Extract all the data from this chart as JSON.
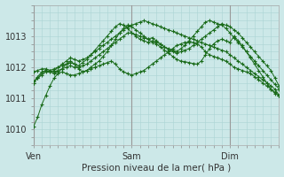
{
  "background_color": "#cce8e8",
  "grid_color": "#aad4d4",
  "line_color": "#1a6b1a",
  "text_color": "#333333",
  "xlabel": "Pression niveau de la mer( hPa )",
  "xlabel_fontsize": 7.5,
  "tick_fontsize": 7,
  "ylim": [
    1009.5,
    1014.0
  ],
  "yticks": [
    1010,
    1011,
    1012,
    1013
  ],
  "xtick_labels": [
    "Ven",
    "Sam",
    "Dim"
  ],
  "xtick_positions": [
    0,
    96,
    192
  ],
  "vline_positions": [
    0,
    96,
    192
  ],
  "xlim": [
    0,
    240
  ],
  "series": [
    {
      "x": [
        0,
        4,
        8,
        12,
        16,
        20,
        24,
        28,
        32,
        36,
        40,
        44,
        48,
        52,
        56,
        60,
        64,
        68,
        72,
        76,
        80,
        84,
        88,
        92,
        96,
        100,
        104,
        108,
        112,
        116,
        120,
        124,
        128,
        132,
        136,
        140,
        144,
        148,
        152,
        156,
        160,
        164,
        168,
        172,
        176,
        180,
        184,
        188,
        192,
        196,
        200,
        204,
        208,
        212,
        216,
        220,
        224,
        228,
        232,
        236,
        240
      ],
      "y": [
        1010.1,
        1010.4,
        1010.8,
        1011.1,
        1011.4,
        1011.65,
        1011.8,
        1011.85,
        1011.8,
        1011.75,
        1011.75,
        1011.8,
        1011.85,
        1011.9,
        1011.95,
        1012.0,
        1012.05,
        1012.1,
        1012.15,
        1012.2,
        1012.1,
        1011.95,
        1011.85,
        1011.8,
        1011.75,
        1011.8,
        1011.85,
        1011.9,
        1012.0,
        1012.1,
        1012.2,
        1012.3,
        1012.4,
        1012.5,
        1012.6,
        1012.7,
        1012.75,
        1012.8,
        1012.8,
        1012.8,
        1012.75,
        1012.65,
        1012.5,
        1012.4,
        1012.35,
        1012.3,
        1012.25,
        1012.2,
        1012.1,
        1012.0,
        1011.95,
        1011.9,
        1011.85,
        1011.8,
        1011.7,
        1011.6,
        1011.5,
        1011.4,
        1011.3,
        1011.2,
        1011.1
      ]
    },
    {
      "x": [
        0,
        4,
        8,
        12,
        16,
        20,
        24,
        28,
        32,
        36,
        40,
        44,
        48,
        52,
        56,
        60,
        64,
        68,
        72,
        76,
        80,
        84,
        88,
        92,
        96,
        100,
        104,
        108,
        112,
        116,
        120,
        124,
        128,
        132,
        136,
        140,
        144,
        148,
        152,
        156,
        160,
        164,
        168,
        172,
        176,
        180,
        184,
        188,
        192,
        196,
        200,
        204,
        208,
        212,
        216,
        220,
        224,
        228,
        232,
        236,
        240
      ],
      "y": [
        1011.5,
        1011.7,
        1011.85,
        1011.9,
        1011.85,
        1011.9,
        1012.0,
        1012.05,
        1012.1,
        1012.15,
        1012.1,
        1011.95,
        1011.85,
        1011.9,
        1012.0,
        1012.1,
        1012.2,
        1012.35,
        1012.5,
        1012.7,
        1012.9,
        1013.1,
        1013.25,
        1013.35,
        1013.3,
        1013.2,
        1013.1,
        1013.0,
        1012.9,
        1012.8,
        1012.75,
        1012.65,
        1012.55,
        1012.45,
        1012.35,
        1012.25,
        1012.2,
        1012.18,
        1012.15,
        1012.12,
        1012.1,
        1012.2,
        1012.4,
        1012.6,
        1012.75,
        1012.85,
        1012.9,
        1012.85,
        1012.8,
        1013.0,
        1012.85,
        1012.7,
        1012.5,
        1012.3,
        1012.1,
        1011.9,
        1011.7,
        1011.5,
        1011.3,
        1011.15,
        1011.1
      ]
    },
    {
      "x": [
        0,
        4,
        8,
        12,
        16,
        20,
        24,
        28,
        32,
        36,
        40,
        44,
        48,
        52,
        56,
        60,
        64,
        68,
        72,
        76,
        80,
        84,
        88,
        92,
        96,
        100,
        104,
        108,
        112,
        116,
        120,
        124,
        128,
        132,
        136,
        140,
        144,
        148,
        152,
        156,
        160,
        164,
        168,
        172,
        176,
        180,
        184,
        188,
        192,
        196,
        200,
        204,
        208,
        212,
        216,
        220,
        224,
        228,
        232,
        236,
        240
      ],
      "y": [
        1011.5,
        1011.65,
        1011.8,
        1011.9,
        1011.85,
        1011.8,
        1011.85,
        1011.95,
        1012.1,
        1012.2,
        1012.1,
        1012.05,
        1012.15,
        1012.25,
        1012.4,
        1012.55,
        1012.7,
        1012.85,
        1013.0,
        1013.15,
        1013.3,
        1013.4,
        1013.35,
        1013.25,
        1013.1,
        1013.0,
        1012.9,
        1012.85,
        1012.8,
        1012.85,
        1012.8,
        1012.75,
        1012.65,
        1012.6,
        1012.55,
        1012.5,
        1012.6,
        1012.7,
        1012.85,
        1013.0,
        1013.15,
        1013.3,
        1013.45,
        1013.5,
        1013.45,
        1013.4,
        1013.35,
        1013.25,
        1013.1,
        1012.95,
        1012.8,
        1012.65,
        1012.5,
        1012.35,
        1012.2,
        1012.05,
        1011.9,
        1011.75,
        1011.6,
        1011.45,
        1011.3
      ]
    },
    {
      "x": [
        0,
        4,
        8,
        12,
        16,
        20,
        24,
        28,
        32,
        36,
        40,
        44,
        48,
        52,
        56,
        60,
        64,
        68,
        72,
        76,
        80,
        84,
        88,
        92,
        96,
        100,
        104,
        108,
        112,
        116,
        120,
        124,
        128,
        132,
        136,
        140,
        144,
        148,
        152,
        156,
        160,
        164,
        168,
        172,
        176,
        180,
        184,
        188,
        192,
        196,
        200,
        204,
        208,
        212,
        216,
        220,
        224,
        228,
        232,
        236,
        240
      ],
      "y": [
        1011.55,
        1011.65,
        1011.75,
        1011.85,
        1011.9,
        1011.85,
        1011.9,
        1011.95,
        1012.0,
        1012.05,
        1012.0,
        1012.0,
        1012.05,
        1012.1,
        1012.2,
        1012.3,
        1012.4,
        1012.5,
        1012.6,
        1012.7,
        1012.8,
        1012.9,
        1013.0,
        1013.1,
        1013.1,
        1013.05,
        1013.0,
        1012.95,
        1012.9,
        1012.95,
        1012.85,
        1012.75,
        1012.65,
        1012.55,
        1012.5,
        1012.45,
        1012.5,
        1012.55,
        1012.6,
        1012.7,
        1012.8,
        1012.9,
        1013.0,
        1013.1,
        1013.2,
        1013.3,
        1013.4,
        1013.35,
        1013.3,
        1013.2,
        1013.1,
        1012.95,
        1012.8,
        1012.65,
        1012.5,
        1012.35,
        1012.2,
        1012.05,
        1011.9,
        1011.65,
        1011.4
      ]
    },
    {
      "x": [
        0,
        4,
        8,
        12,
        16,
        20,
        24,
        28,
        32,
        36,
        40,
        44,
        48,
        52,
        56,
        60,
        64,
        68,
        72,
        76,
        80,
        84,
        88,
        92,
        96,
        100,
        104,
        108,
        112,
        116,
        120,
        124,
        128,
        132,
        136,
        140,
        144,
        148,
        152,
        156,
        160,
        164,
        168,
        172,
        176,
        180,
        184,
        188,
        192,
        196,
        200,
        204,
        208,
        212,
        216,
        220,
        224,
        228,
        232,
        236,
        240
      ],
      "y": [
        1011.85,
        1011.9,
        1011.95,
        1011.95,
        1011.9,
        1011.95,
        1012.0,
        1012.1,
        1012.2,
        1012.3,
        1012.25,
        1012.2,
        1012.25,
        1012.3,
        1012.4,
        1012.5,
        1012.6,
        1012.7,
        1012.8,
        1012.9,
        1013.0,
        1013.1,
        1013.2,
        1013.3,
        1013.35,
        1013.4,
        1013.45,
        1013.5,
        1013.45,
        1013.4,
        1013.35,
        1013.3,
        1013.25,
        1013.2,
        1013.15,
        1013.1,
        1013.05,
        1013.0,
        1012.95,
        1012.9,
        1012.85,
        1012.8,
        1012.75,
        1012.7,
        1012.65,
        1012.6,
        1012.55,
        1012.5,
        1012.4,
        1012.3,
        1012.2,
        1012.1,
        1012.0,
        1011.9,
        1011.8,
        1011.7,
        1011.6,
        1011.5,
        1011.4,
        1011.3,
        1011.1
      ]
    }
  ]
}
